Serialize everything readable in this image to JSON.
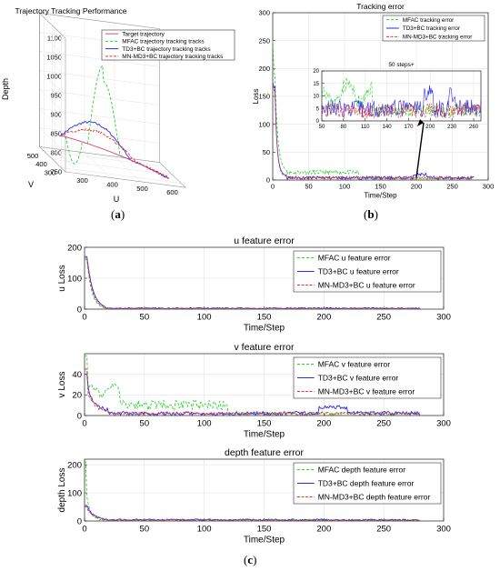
{
  "panels": {
    "a": {
      "label": "a"
    },
    "b": {
      "label": "b"
    },
    "c": {
      "label": "c"
    }
  },
  "colors": {
    "target": "#e0407a",
    "mfac": "#2bd32b",
    "td3": "#2a2af0",
    "mnmd3": "#e03a2a",
    "arrow": "#000000"
  },
  "chart_data": [
    {
      "type": "line3d",
      "title": "Trajectory Tracking Performance",
      "xlabel": "U",
      "ylabel": "V",
      "zlabel": "Depth",
      "x_ticks": [
        "300",
        "400",
        "500",
        "600"
      ],
      "y_ticks": [
        "300",
        "400",
        "500"
      ],
      "z_ticks": [
        "750",
        "800",
        "850",
        "900",
        "950",
        "1000",
        "1050",
        "1100"
      ],
      "grid": true,
      "legend_position": "top-right",
      "series": [
        {
          "name": "Target trajectory"
        },
        {
          "name": "MFAC trajectory tracking tracks"
        },
        {
          "name": "TD3+BC trajectory tracking tracks"
        },
        {
          "name": "MN-MD3+BC trajectory tracking tracks"
        }
      ]
    },
    {
      "type": "line",
      "title": "Tracking error",
      "xlabel": "Time/Step",
      "ylabel": "Loss",
      "xlim": [
        0,
        300
      ],
      "ylim": [
        0,
        300
      ],
      "x_ticks": [
        "0",
        "50",
        "100",
        "150",
        "200",
        "250",
        "300"
      ],
      "y_ticks": [
        "0",
        "50",
        "100",
        "150",
        "200",
        "250",
        "300"
      ],
      "grid": true,
      "legend_position": "top-right",
      "series": [
        {
          "name": "MFAC tracking error"
        },
        {
          "name": "TD3+BC tracking error"
        },
        {
          "name": "MN-MD3+BC tracking error"
        }
      ],
      "inset": {
        "title": "50 steps+",
        "xlim": [
          50,
          270
        ],
        "ylim": [
          0,
          20
        ],
        "x_ticks": [
          "50",
          "80",
          "110",
          "140",
          "170",
          "200",
          "230",
          "260"
        ],
        "y_ticks": [
          "0",
          "5",
          "10",
          "15",
          "20"
        ]
      }
    },
    {
      "type": "line",
      "title": "u feature error",
      "xlabel": "Time/Step",
      "ylabel": "u Loss",
      "xlim": [
        0,
        300
      ],
      "ylim": [
        0,
        200
      ],
      "x_ticks": [
        "0",
        "50",
        "100",
        "150",
        "200",
        "250",
        "300"
      ],
      "y_ticks": [
        "0",
        "100",
        "200"
      ],
      "grid": true,
      "legend_position": "top-right",
      "series": [
        {
          "name": "MFAC u feature error"
        },
        {
          "name": "TD3+BC u feature error"
        },
        {
          "name": "MN-MD3+BC u feature error"
        }
      ]
    },
    {
      "type": "line",
      "title": "v feature error",
      "xlabel": "Time/Step",
      "ylabel": "v Loss",
      "xlim": [
        0,
        300
      ],
      "ylim": [
        0,
        60
      ],
      "x_ticks": [
        "0",
        "50",
        "100",
        "150",
        "200",
        "250",
        "300"
      ],
      "y_ticks": [
        "0",
        "20",
        "40"
      ],
      "grid": true,
      "legend_position": "top-right",
      "series": [
        {
          "name": "MFAC v feature error"
        },
        {
          "name": "TD3+BC v feature error"
        },
        {
          "name": "MN-MD3+BC v feature error"
        }
      ]
    },
    {
      "type": "line",
      "title": "depth feature error",
      "xlabel": "Time/Step",
      "ylabel": "depth Loss",
      "xlim": [
        0,
        300
      ],
      "ylim": [
        0,
        220
      ],
      "x_ticks": [
        "0",
        "50",
        "100",
        "150",
        "200",
        "250",
        "300"
      ],
      "y_ticks": [
        "0",
        "100",
        "200"
      ],
      "grid": true,
      "legend_position": "top-right",
      "series": [
        {
          "name": "MFAC depth feature error"
        },
        {
          "name": "TD3+BC depth feature error"
        },
        {
          "name": "MN-MD3+BC depth feature error"
        }
      ]
    }
  ]
}
